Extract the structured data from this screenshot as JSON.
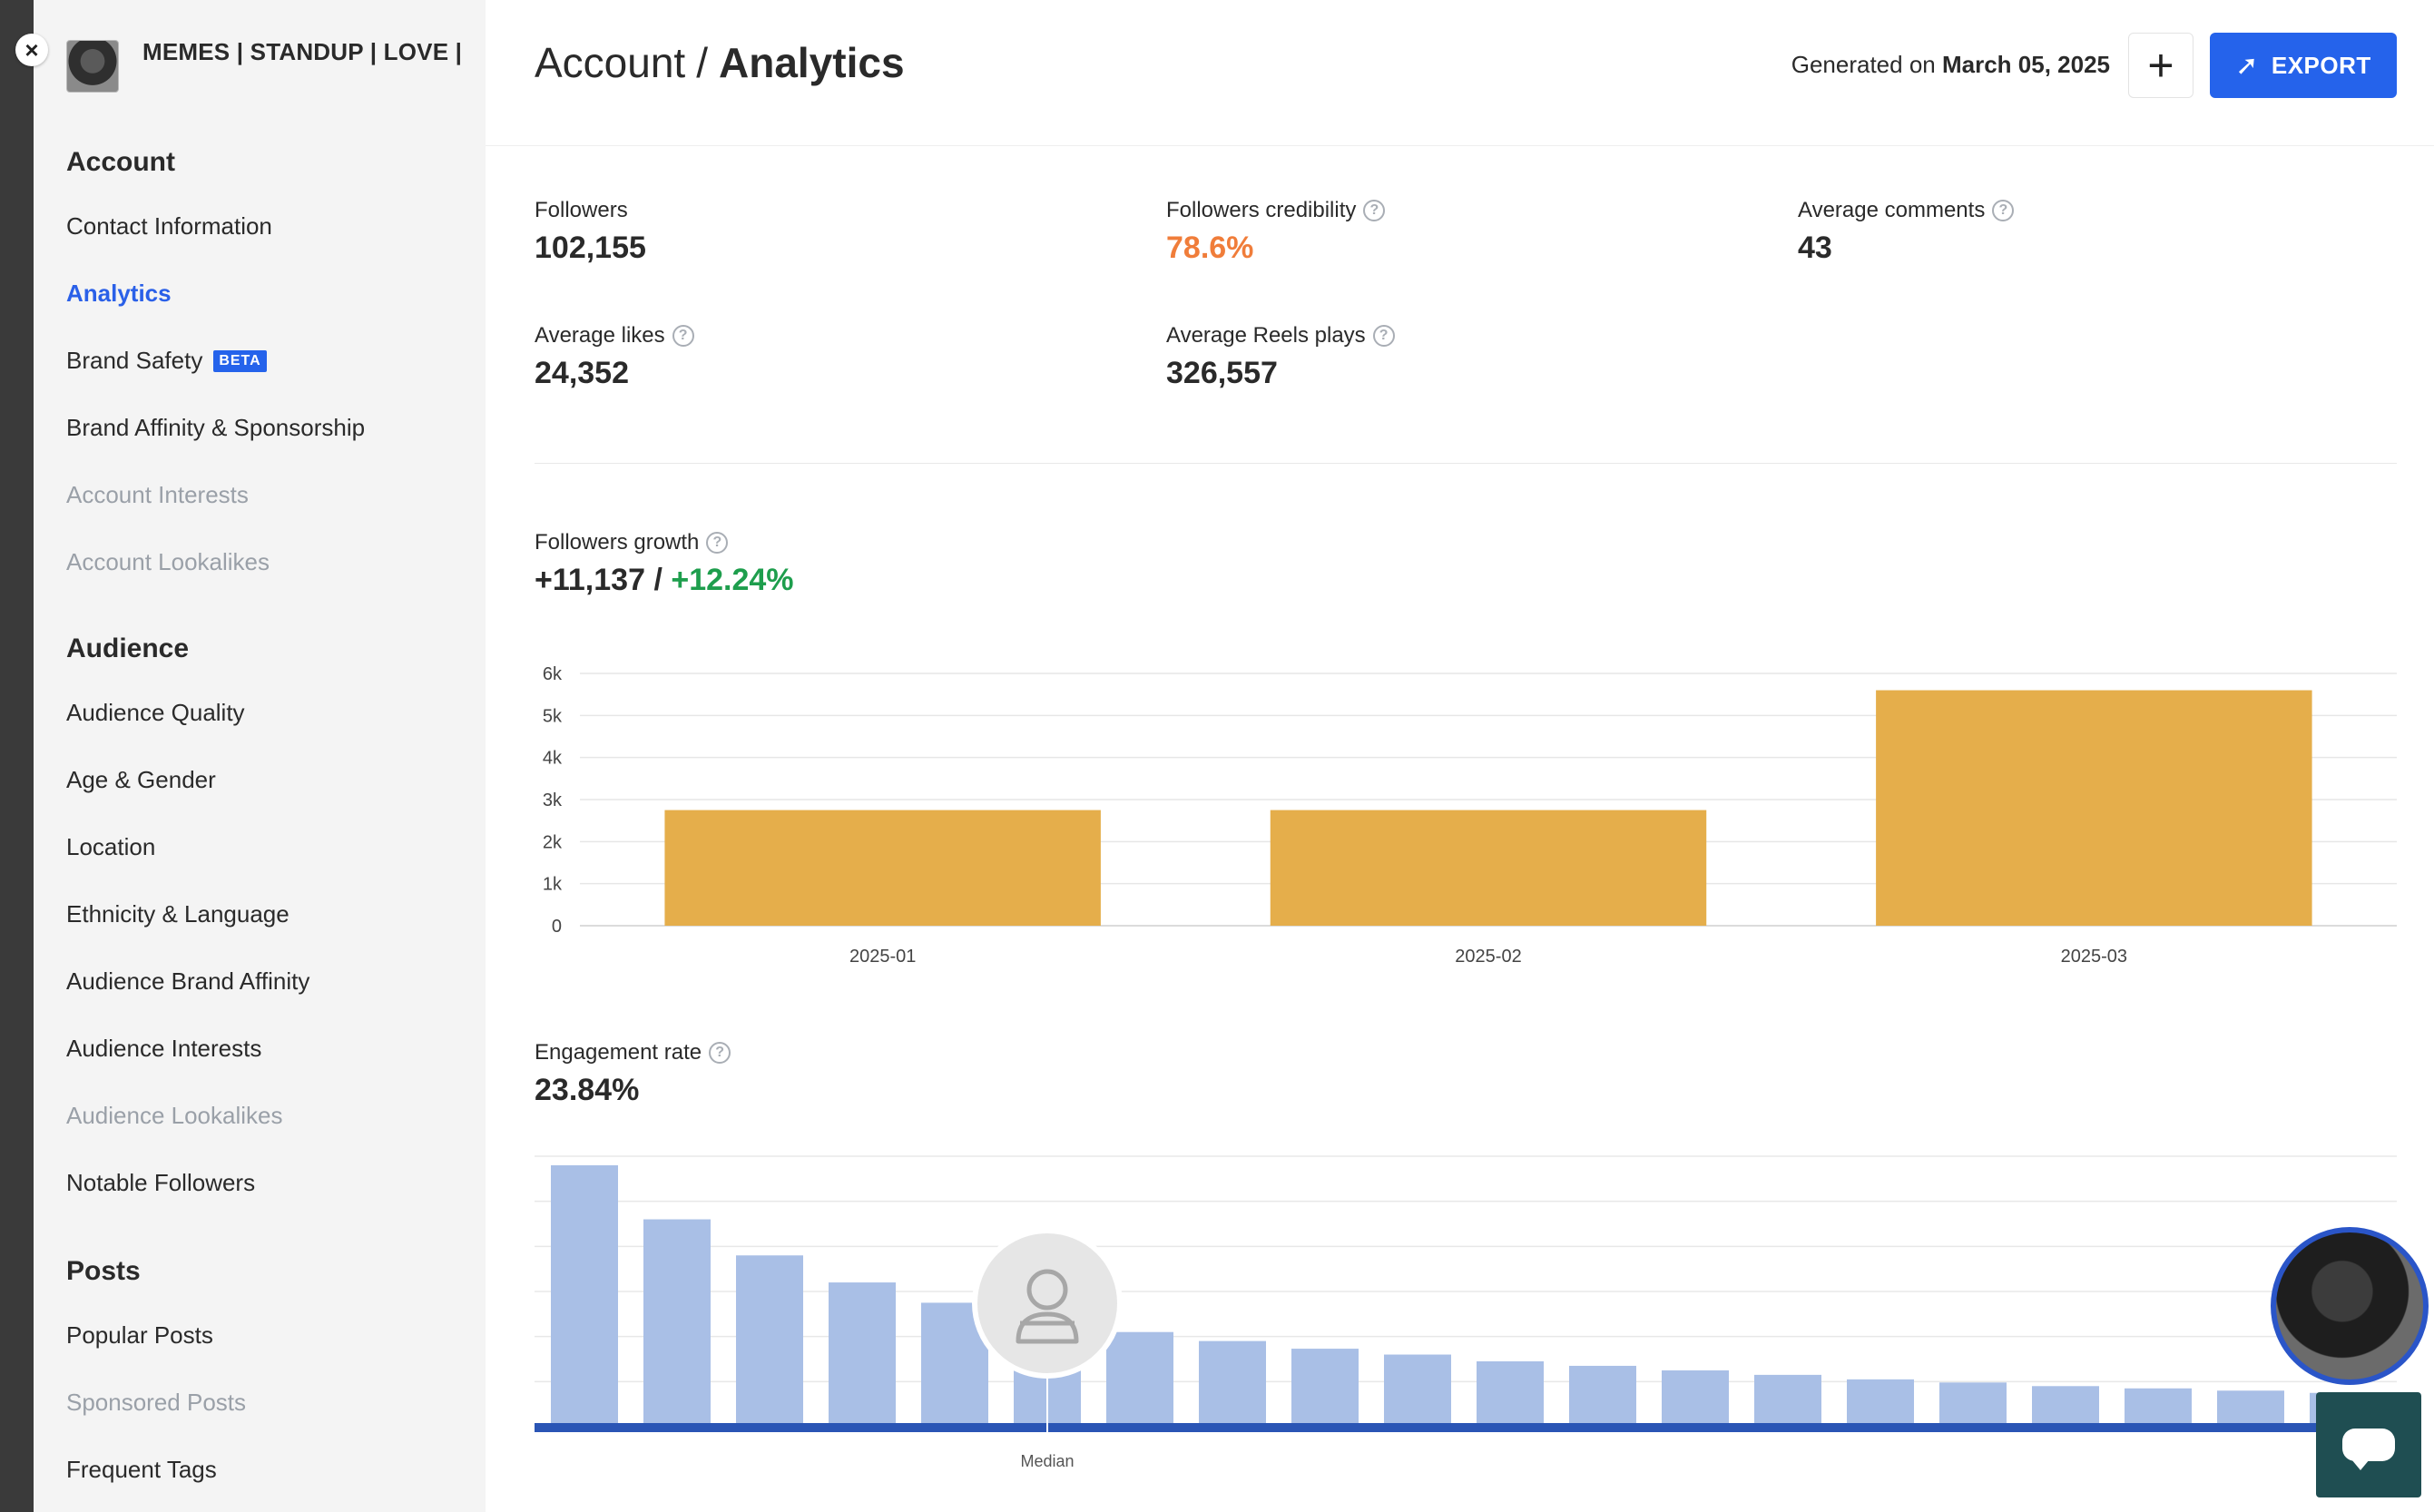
{
  "window": {
    "close_label": "×"
  },
  "profile": {
    "name": "MEMES | STANDUP | LOVE |"
  },
  "sidebar": {
    "sections": [
      {
        "title": "Account",
        "items": [
          {
            "label": "Contact Information",
            "state": "normal"
          },
          {
            "label": "Analytics",
            "state": "active"
          },
          {
            "label": "Brand Safety",
            "state": "normal",
            "badge": "BETA"
          },
          {
            "label": "Brand Affinity & Sponsorship",
            "state": "normal"
          },
          {
            "label": "Account Interests",
            "state": "disabled"
          },
          {
            "label": "Account Lookalikes",
            "state": "disabled"
          }
        ]
      },
      {
        "title": "Audience",
        "items": [
          {
            "label": "Audience Quality",
            "state": "normal"
          },
          {
            "label": "Age & Gender",
            "state": "normal"
          },
          {
            "label": "Location",
            "state": "normal"
          },
          {
            "label": "Ethnicity & Language",
            "state": "normal"
          },
          {
            "label": "Audience Brand Affinity",
            "state": "normal"
          },
          {
            "label": "Audience Interests",
            "state": "normal"
          },
          {
            "label": "Audience Lookalikes",
            "state": "disabled"
          },
          {
            "label": "Notable Followers",
            "state": "normal"
          }
        ]
      },
      {
        "title": "Posts",
        "items": [
          {
            "label": "Popular Posts",
            "state": "normal"
          },
          {
            "label": "Sponsored Posts",
            "state": "disabled"
          },
          {
            "label": "Frequent Tags",
            "state": "normal"
          }
        ]
      }
    ]
  },
  "header": {
    "breadcrumb_parent": "Account",
    "breadcrumb_sep": "/",
    "breadcrumb_current": "Analytics",
    "generated_prefix": "Generated on",
    "generated_date": "March 05, 2025",
    "plus_label": "+",
    "export_label": "EXPORT"
  },
  "stats": {
    "followers": {
      "label": "Followers",
      "value": "102,155"
    },
    "credibility": {
      "label": "Followers credibility",
      "value": "78.6%"
    },
    "avg_comments": {
      "label": "Average comments",
      "value": "43"
    },
    "avg_likes": {
      "label": "Average likes",
      "value": "24,352"
    },
    "avg_reels": {
      "label": "Average Reels plays",
      "value": "326,557"
    }
  },
  "growth": {
    "label": "Followers growth",
    "abs": "+11,137",
    "sep": "/",
    "pct": "+12.24%"
  },
  "engagement": {
    "label": "Engagement rate",
    "value": "23.84%",
    "median_label": "Median"
  },
  "colors": {
    "accent": "#2563eb",
    "growth_bar": "#e5ae4b",
    "engagement_bar": "#a9bfe6",
    "engagement_baseline": "#2a55b5",
    "credibility": "#f07d3a",
    "positive": "#1e9e4d"
  },
  "chart_data": [
    {
      "type": "bar",
      "title": "",
      "categories": [
        "2025-01",
        "2025-02",
        "2025-03"
      ],
      "values": [
        2750,
        2750,
        5600
      ],
      "yticks": [
        "0",
        "1k",
        "2k",
        "3k",
        "4k",
        "5k",
        "6k"
      ],
      "ylim": [
        0,
        6000
      ],
      "grid": true
    },
    {
      "type": "bar",
      "title": "",
      "values": [
        5.8,
        4.6,
        3.8,
        3.2,
        2.75,
        2.25,
        2.1,
        1.9,
        1.73,
        1.6,
        1.45,
        1.35,
        1.25,
        1.15,
        1.05,
        0.98,
        0.9,
        0.85,
        0.8,
        0.75
      ],
      "ylim": [
        0,
        6
      ],
      "median_index": 5,
      "grid": true
    }
  ]
}
